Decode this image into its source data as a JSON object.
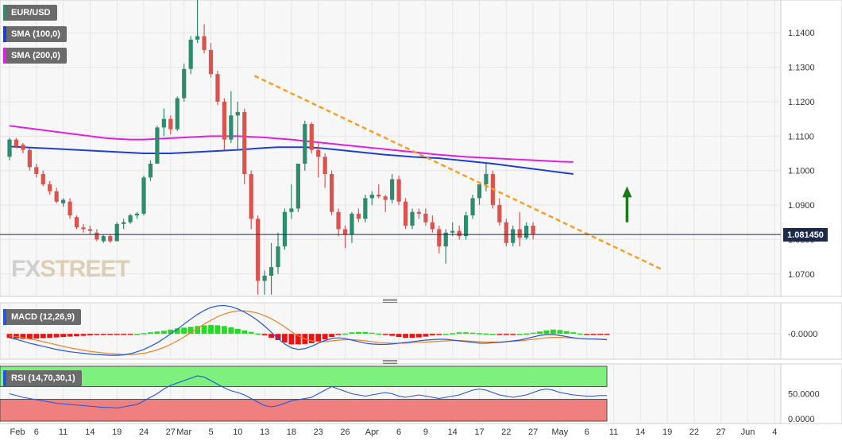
{
  "legends": {
    "instrument": "EUR/USD",
    "sma100": "SMA (100,0)",
    "sma200": "SMA (200,0)",
    "macd": "MACD (12,26,9)",
    "rsi": "RSI (14,70,30,1)"
  },
  "colors": {
    "bull": "#2e8b6e",
    "bear": "#d9534f",
    "sma100": "#1f3fcf",
    "sma200": "#e020e0",
    "trendline": "#f5a020",
    "arrow": "#1a7a1a",
    "macd_line": "#2255dd",
    "signal_line": "#f08020",
    "hist_pos": "#22dd22",
    "hist_neg": "#ee1111",
    "rsi_line": "#2255dd",
    "rsi_overbought": "#7ef07e",
    "rsi_oversold": "#f08080"
  },
  "watermark": {
    "fx": "FX",
    "street": "STREET"
  },
  "current_price": "1.081450",
  "chart_data": [
    {
      "type": "candlestick",
      "name": "EUR/USD",
      "y_ticks": [
        "1.1400",
        "1.1300",
        "1.1200",
        "1.1100",
        "1.1000",
        "1.0900",
        "1.0800",
        "1.0700"
      ],
      "y_tick_values": [
        1.14,
        1.13,
        1.12,
        1.11,
        1.1,
        1.09,
        1.08,
        1.07
      ],
      "ylim": [
        1.0635,
        1.1495
      ],
      "x_ticks": [
        {
          "label": "Feb",
          "i": 0
        },
        {
          "label": "6",
          "i": 4
        },
        {
          "label": "11",
          "i": 8
        },
        {
          "label": "14",
          "i": 12
        },
        {
          "label": "19",
          "i": 16
        },
        {
          "label": "24",
          "i": 20
        },
        {
          "label": "27",
          "i": 24
        },
        {
          "label": "Mar",
          "i": 26
        },
        {
          "label": "5",
          "i": 30
        },
        {
          "label": "10",
          "i": 34
        },
        {
          "label": "13",
          "i": 38
        },
        {
          "label": "18",
          "i": 42
        },
        {
          "label": "23",
          "i": 46
        },
        {
          "label": "26",
          "i": 50
        },
        {
          "label": "Apr",
          "i": 54
        },
        {
          "label": "6",
          "i": 58
        },
        {
          "label": "9",
          "i": 62
        },
        {
          "label": "14",
          "i": 66
        },
        {
          "label": "17",
          "i": 70
        },
        {
          "label": "22",
          "i": 74
        },
        {
          "label": "27",
          "i": 78
        },
        {
          "label": "May",
          "i": 82
        },
        {
          "label": "6",
          "i": 86
        },
        {
          "label": "11",
          "i": 90
        },
        {
          "label": "14",
          "i": 94
        },
        {
          "label": "19",
          "i": 98
        },
        {
          "label": "22",
          "i": 102
        },
        {
          "label": "27",
          "i": 106
        },
        {
          "label": "Jun",
          "i": 110
        },
        {
          "label": "4",
          "i": 114
        }
      ],
      "candles": [
        [
          1.104,
          1.1095,
          1.103,
          1.109
        ],
        [
          1.109,
          1.1095,
          1.1065,
          1.107
        ],
        [
          1.1075,
          1.108,
          1.105,
          1.106
        ],
        [
          1.106,
          1.1065,
          1.1,
          1.101
        ],
        [
          1.101,
          1.102,
          1.098,
          1.099
        ],
        [
          1.099,
          1.1,
          1.0955,
          1.096
        ],
        [
          1.096,
          1.097,
          1.093,
          1.094
        ],
        [
          1.094,
          1.095,
          1.0905,
          1.091
        ],
        [
          1.0905,
          1.092,
          1.0895,
          1.0915
        ],
        [
          1.091,
          1.092,
          1.086,
          1.087
        ],
        [
          1.0865,
          1.087,
          1.083,
          1.0835
        ],
        [
          1.0835,
          1.0845,
          1.082,
          1.083
        ],
        [
          1.083,
          1.084,
          1.0815,
          1.0825
        ],
        [
          1.082,
          1.083,
          1.0795,
          1.08
        ],
        [
          1.0795,
          1.0815,
          1.079,
          1.081
        ],
        [
          1.081,
          1.0815,
          1.079,
          1.0795
        ],
        [
          1.0795,
          1.085,
          1.0795,
          1.0845
        ],
        [
          1.0845,
          1.086,
          1.083,
          1.085
        ],
        [
          1.085,
          1.0875,
          1.0845,
          1.087
        ],
        [
          1.087,
          1.088,
          1.086,
          1.0875
        ],
        [
          1.0875,
          1.0985,
          1.087,
          1.098
        ],
        [
          1.098,
          1.103,
          1.097,
          1.102
        ],
        [
          1.102,
          1.113,
          1.102,
          1.1125
        ],
        [
          1.1125,
          1.118,
          1.11,
          1.115
        ],
        [
          1.115,
          1.116,
          1.1105,
          1.112
        ],
        [
          1.112,
          1.1215,
          1.1115,
          1.121
        ],
        [
          1.121,
          1.131,
          1.12,
          1.1295
        ],
        [
          1.1295,
          1.139,
          1.128,
          1.138
        ],
        [
          1.138,
          1.1495,
          1.137,
          1.139
        ],
        [
          1.139,
          1.1425,
          1.134,
          1.135
        ],
        [
          1.135,
          1.137,
          1.127,
          1.128
        ],
        [
          1.128,
          1.129,
          1.119,
          1.12
        ],
        [
          1.12,
          1.121,
          1.106,
          1.109
        ],
        [
          1.109,
          1.123,
          1.108,
          1.116
        ],
        [
          1.116,
          1.12,
          1.106,
          1.117
        ],
        [
          1.117,
          1.118,
          1.096,
          1.099
        ],
        [
          1.099,
          1.1,
          1.083,
          1.086
        ],
        [
          1.086,
          1.087,
          1.064,
          1.068
        ],
        [
          1.068,
          1.071,
          1.064,
          1.0695
        ],
        [
          1.0695,
          1.079,
          1.064,
          1.072
        ],
        [
          1.072,
          1.082,
          1.07,
          1.078
        ],
        [
          1.078,
          1.089,
          1.077,
          1.088
        ],
        [
          1.088,
          1.096,
          1.086,
          1.089
        ],
        [
          1.089,
          1.102,
          1.088,
          1.102
        ],
        [
          1.102,
          1.1145,
          1.1,
          1.1135
        ],
        [
          1.1135,
          1.114,
          1.105,
          1.106
        ],
        [
          1.106,
          1.108,
          1.098,
          1.104
        ],
        [
          1.104,
          1.105,
          1.095,
          1.099
        ],
        [
          1.099,
          1.1,
          1.087,
          1.088
        ],
        [
          1.088,
          1.089,
          1.081,
          1.083
        ],
        [
          1.083,
          1.084,
          1.0775,
          1.0815
        ],
        [
          1.0815,
          1.088,
          1.079,
          1.0875
        ],
        [
          1.0875,
          1.089,
          1.085,
          1.086
        ],
        [
          1.086,
          1.093,
          1.085,
          1.092
        ],
        [
          1.092,
          1.094,
          1.09,
          1.093
        ],
        [
          1.093,
          1.096,
          1.092,
          1.0925
        ],
        [
          1.0925,
          1.093,
          1.088,
          1.0915
        ],
        [
          1.0915,
          1.099,
          1.0905,
          1.0975
        ],
        [
          1.0975,
          1.0985,
          1.09,
          1.091
        ],
        [
          1.091,
          1.092,
          1.083,
          1.084
        ],
        [
          1.084,
          1.089,
          1.083,
          1.088
        ],
        [
          1.088,
          1.089,
          1.086,
          1.0875
        ],
        [
          1.0875,
          1.089,
          1.084,
          1.085
        ],
        [
          1.085,
          1.087,
          1.082,
          1.083
        ],
        [
          1.083,
          1.084,
          1.076,
          1.078
        ],
        [
          1.078,
          1.083,
          1.073,
          1.082
        ],
        [
          1.082,
          1.085,
          1.081,
          1.0825
        ],
        [
          1.0825,
          1.084,
          1.08,
          1.081
        ],
        [
          1.081,
          1.088,
          1.08,
          1.087
        ],
        [
          1.087,
          1.093,
          1.086,
          1.092
        ],
        [
          1.092,
          1.096,
          1.09,
          1.096
        ],
        [
          1.096,
          1.102,
          1.094,
          1.099
        ],
        [
          1.099,
          1.1,
          1.089,
          1.09
        ],
        [
          1.09,
          1.092,
          1.084,
          1.085
        ],
        [
          1.085,
          1.086,
          1.078,
          1.079
        ],
        [
          1.079,
          1.084,
          1.078,
          1.083
        ],
        [
          1.083,
          1.088,
          1.078,
          1.0805
        ],
        [
          1.0805,
          1.085,
          1.08,
          1.084
        ],
        [
          1.084,
          1.085,
          1.08,
          1.0815
        ]
      ],
      "sma100": [
        1.107,
        1.1068,
        1.1066,
        1.1064,
        1.1062,
        1.106,
        1.1058,
        1.1056,
        1.1054,
        1.1052,
        1.105,
        1.105,
        1.105,
        1.1052,
        1.1054,
        1.1056,
        1.1058,
        1.106,
        1.1063,
        1.1066,
        1.1068,
        1.1068,
        1.1068,
        1.1066,
        1.1062,
        1.1058,
        1.1054,
        1.105,
        1.1046,
        1.1043,
        1.104,
        1.1038,
        1.1036,
        1.1032,
        1.1028,
        1.1024,
        1.102,
        1.1015,
        1.101,
        1.1005,
        1.1,
        1.0995,
        1.099
      ],
      "sma100_start": 0,
      "sma100_step": 2,
      "sma200": [
        1.113,
        1.1125,
        1.112,
        1.1115,
        1.111,
        1.1105,
        1.11,
        1.1095,
        1.1092,
        1.109,
        1.109,
        1.1092,
        1.1094,
        1.1096,
        1.1098,
        1.11,
        1.11,
        1.11,
        1.1098,
        1.1096,
        1.1093,
        1.109,
        1.1086,
        1.1082,
        1.1078,
        1.1074,
        1.107,
        1.1066,
        1.1062,
        1.1058,
        1.1054,
        1.105,
        1.1046,
        1.1043,
        1.104,
        1.1038,
        1.1036,
        1.1034,
        1.1032,
        1.103,
        1.1028,
        1.1026,
        1.1025
      ],
      "sma200_start": 0,
      "sma200_step": 2,
      "trendline": {
        "x1": 36.5,
        "y1": 1.1275,
        "x2": 97,
        "y2": 1.0715
      },
      "arrow": {
        "x": 92,
        "y_from": 1.085,
        "y_to": 1.095
      },
      "current_price_value": 1.08145
    },
    {
      "type": "macd",
      "name": "MACD (12,26,9)",
      "y_ticks": [
        "-0.0000"
      ],
      "y_tick_values": [
        0
      ],
      "ylim": [
        -0.0065,
        0.008
      ],
      "histogram": [
        -0.001,
        -0.0012,
        -0.0013,
        -0.0013,
        -0.0012,
        -0.0011,
        -0.001,
        -0.0009,
        -0.0008,
        -0.0007,
        -0.0006,
        -0.0005,
        -0.0004,
        -0.0003,
        -0.0002,
        -0.0001,
        -0.0001,
        -0.0001,
        -0.0001,
        0.0,
        0.0002,
        0.0004,
        0.0006,
        0.0008,
        0.0011,
        0.0014,
        0.0016,
        0.0018,
        0.002,
        0.0022,
        0.0023,
        0.0022,
        0.002,
        0.0017,
        0.0013,
        0.0009,
        0.0005,
        0.0001,
        -0.0004,
        -0.001,
        -0.0016,
        -0.0022,
        -0.0027,
        -0.0027,
        -0.0026,
        -0.0024,
        -0.002,
        -0.0014,
        -0.0008,
        -0.0003,
        0.0001,
        0.0004,
        0.0005,
        0.0005,
        0.0003,
        0.0001,
        -0.0002,
        -0.0005,
        -0.0008,
        -0.001,
        -0.001,
        -0.0009,
        -0.0007,
        -0.0004,
        -0.0002,
        0.0,
        0.0002,
        0.0004,
        0.0004,
        0.0003,
        0.0002,
        0.0001,
        0.0,
        -0.0001,
        -0.0001,
        -0.0001,
        0.0,
        0.0001,
        0.0003,
        0.0006,
        0.0009,
        0.0011,
        0.001,
        0.0007,
        0.0004,
        0.0001,
        -0.0001,
        -0.0001,
        -0.0001,
        -0.0001
      ],
      "macd": [
        -0.001,
        -0.0014,
        -0.0019,
        -0.0024,
        -0.0028,
        -0.0032,
        -0.0036,
        -0.004,
        -0.0043,
        -0.0046,
        -0.0048,
        -0.005,
        -0.0052,
        -0.0053,
        -0.0054,
        -0.0055,
        -0.0055,
        -0.0054,
        -0.0051,
        -0.0046,
        -0.004,
        -0.0032,
        -0.0023,
        -0.0012,
        0.0,
        0.0012,
        0.0025,
        0.0038,
        0.005,
        0.006,
        0.0068,
        0.0072,
        0.0073,
        0.007,
        0.0064,
        0.0056,
        0.0046,
        0.0034,
        0.002,
        0.0004,
        -0.0012,
        -0.0026,
        -0.0036,
        -0.004,
        -0.0038,
        -0.0032,
        -0.0024,
        -0.0017,
        -0.0012,
        -0.001,
        -0.0012,
        -0.0016,
        -0.002,
        -0.0024,
        -0.0026,
        -0.0027,
        -0.0027,
        -0.0026,
        -0.0024,
        -0.0022,
        -0.002,
        -0.0018,
        -0.0016,
        -0.0015,
        -0.0014,
        -0.0014,
        -0.0016,
        -0.0018,
        -0.002,
        -0.0022,
        -0.0024,
        -0.0024,
        -0.0023,
        -0.0022,
        -0.002,
        -0.0018,
        -0.0016,
        -0.0012,
        -0.0008,
        -0.0004,
        -0.0002,
        -0.0002,
        -0.0004,
        -0.0007,
        -0.001,
        -0.0012,
        -0.0013,
        -0.0013,
        -0.0014,
        -0.0015
      ],
      "signal": [
        -0.0005,
        -0.0007,
        -0.001,
        -0.0013,
        -0.0016,
        -0.002,
        -0.0024,
        -0.0028,
        -0.0032,
        -0.0036,
        -0.0039,
        -0.0042,
        -0.0045,
        -0.0047,
        -0.0049,
        -0.0051,
        -0.0052,
        -0.0053,
        -0.0053,
        -0.0052,
        -0.005,
        -0.0046,
        -0.0041,
        -0.0035,
        -0.0027,
        -0.0018,
        -0.0008,
        0.0003,
        0.0014,
        0.0025,
        0.0035,
        0.0044,
        0.0051,
        0.0056,
        0.0059,
        0.0059,
        0.0057,
        0.0053,
        0.0047,
        0.0039,
        0.0029,
        0.0018,
        0.0006,
        -0.0005,
        -0.0013,
        -0.0018,
        -0.002,
        -0.002,
        -0.0018,
        -0.0016,
        -0.0015,
        -0.0015,
        -0.0016,
        -0.0018,
        -0.002,
        -0.0022,
        -0.0023,
        -0.0024,
        -0.0024,
        -0.0024,
        -0.0023,
        -0.0022,
        -0.0021,
        -0.002,
        -0.0019,
        -0.0018,
        -0.0017,
        -0.0017,
        -0.0018,
        -0.0019,
        -0.002,
        -0.0021,
        -0.0021,
        -0.0021,
        -0.002,
        -0.0019,
        -0.0018,
        -0.0016,
        -0.0014,
        -0.0012,
        -0.001,
        -0.0009,
        -0.0009,
        -0.001,
        -0.0011,
        -0.0012,
        -0.0013,
        -0.0013,
        -0.0014,
        -0.0014
      ]
    },
    {
      "type": "rsi",
      "name": "RSI (14,70,30,1)",
      "y_ticks": [
        "50.0000",
        "0.0000"
      ],
      "y_tick_values": [
        50,
        0
      ],
      "ylim": [
        0,
        100
      ],
      "overbought": 70,
      "oversold": 30,
      "values": [
        50,
        47,
        44,
        42,
        40,
        38,
        36,
        34,
        33,
        32,
        31,
        30,
        29,
        28,
        27,
        27,
        26,
        28,
        30,
        32,
        38,
        44,
        50,
        58,
        64,
        68,
        72,
        76,
        80,
        78,
        72,
        66,
        60,
        55,
        52,
        48,
        42,
        36,
        30,
        28,
        30,
        34,
        38,
        40,
        42,
        44,
        50,
        56,
        62,
        58,
        54,
        50,
        48,
        46,
        48,
        50,
        52,
        50,
        46,
        44,
        46,
        48,
        46,
        44,
        42,
        44,
        46,
        48,
        52,
        56,
        58,
        56,
        52,
        48,
        46,
        44,
        46,
        48,
        52,
        56,
        58,
        56,
        52,
        50,
        48,
        47,
        46,
        46,
        47,
        47
      ]
    }
  ]
}
